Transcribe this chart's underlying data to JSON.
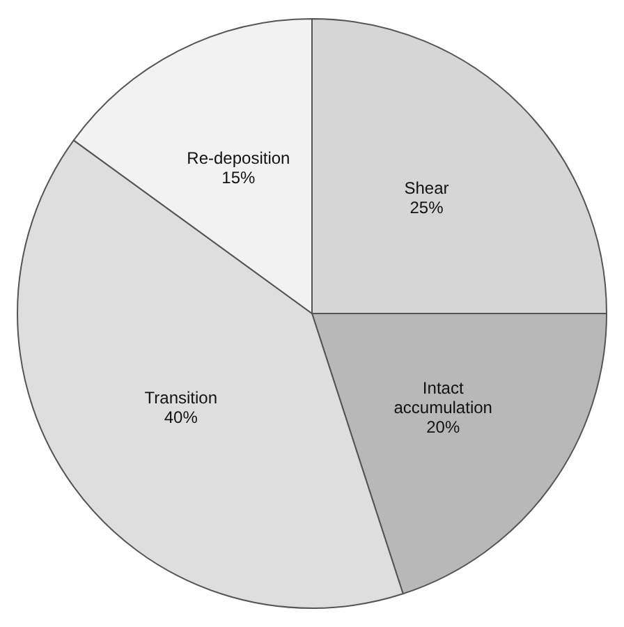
{
  "chart_data": {
    "type": "pie",
    "categories": [
      "Shear",
      "Intact accumulation",
      "Transition",
      "Re-deposition"
    ],
    "values": [
      25,
      20,
      40,
      15
    ],
    "colors": [
      "#d6d6d6",
      "#b8b8b8",
      "#dedede",
      "#f2f2f2"
    ],
    "value_labels": [
      "25%",
      "20%",
      "40%",
      "15%"
    ],
    "legend": false
  }
}
